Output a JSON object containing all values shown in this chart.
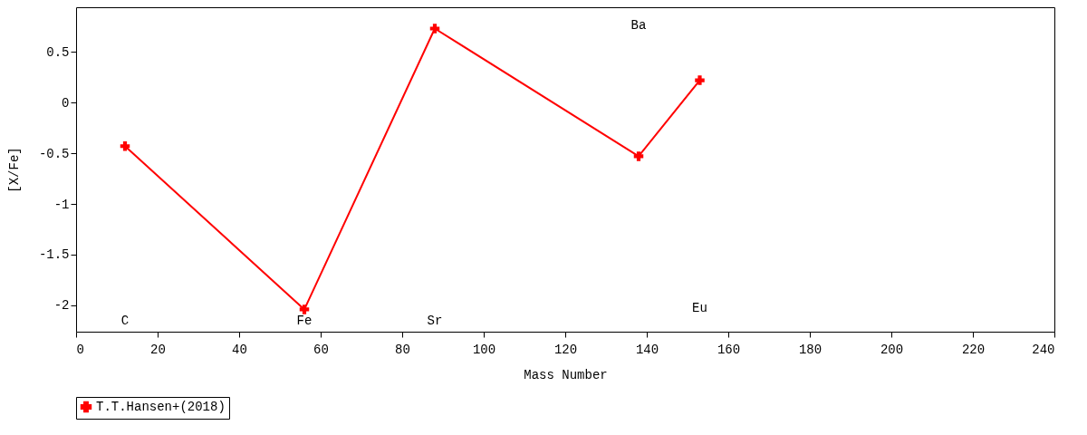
{
  "chart_data": {
    "type": "line",
    "xlabel": "Mass Number",
    "ylabel": "[X/Fe]",
    "x": [
      12,
      56,
      88,
      138,
      153
    ],
    "series": [
      {
        "name": "T.T.Hansen+(2018)",
        "color": "#ff0000",
        "values": [
          -0.43,
          -2.04,
          0.73,
          -0.53,
          0.22
        ]
      }
    ],
    "xlim": [
      0,
      240
    ],
    "xticks": [
      0,
      20,
      40,
      60,
      80,
      100,
      120,
      140,
      160,
      180,
      200,
      220,
      240
    ],
    "ylim": [
      -2.26,
      0.94
    ],
    "yticks": [
      -2,
      -1.5,
      -1,
      -0.5,
      0,
      0.5
    ],
    "annotations": [
      "C",
      "Fe",
      "Sr",
      "Ba",
      "Eu"
    ],
    "grid": false,
    "legend": "bottom",
    "marker": "cross",
    "line_style": "solid"
  }
}
